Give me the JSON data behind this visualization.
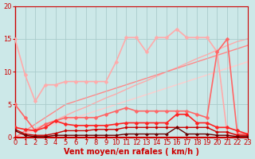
{
  "background_color": "#cce8e8",
  "grid_color": "#aacccc",
  "xlabel": "Vent moyen/en rafales ( km/h )",
  "xlim": [
    0,
    23
  ],
  "ylim": [
    0,
    20
  ],
  "yticks": [
    0,
    5,
    10,
    15,
    20
  ],
  "xticks": [
    0,
    1,
    2,
    3,
    4,
    5,
    6,
    7,
    8,
    9,
    10,
    11,
    12,
    13,
    14,
    15,
    16,
    17,
    18,
    19,
    20,
    21,
    22,
    23
  ],
  "lines": [
    {
      "x": [
        0,
        1,
        2,
        3,
        4,
        5,
        6,
        7,
        8,
        9,
        10,
        11,
        12,
        13,
        14,
        15,
        16,
        17,
        18,
        19,
        20,
        21,
        22,
        23
      ],
      "y": [
        0.0,
        0.5,
        1.0,
        1.5,
        2.0,
        2.5,
        3.0,
        3.5,
        4.0,
        4.5,
        5.0,
        5.5,
        6.0,
        6.5,
        7.0,
        7.5,
        8.0,
        8.5,
        9.0,
        9.5,
        10.0,
        10.5,
        11.0,
        11.5
      ],
      "color": "#ffcccc",
      "lw": 1.0,
      "marker": null,
      "ms": 0,
      "zorder": 1
    },
    {
      "x": [
        0,
        1,
        2,
        3,
        4,
        5,
        6,
        7,
        8,
        9,
        10,
        11,
        12,
        13,
        14,
        15,
        16,
        17,
        18,
        19,
        20,
        21,
        22,
        23
      ],
      "y": [
        0.0,
        0.7,
        1.3,
        2.0,
        2.6,
        3.3,
        4.0,
        4.6,
        5.3,
        6.0,
        6.6,
        7.3,
        8.0,
        8.6,
        9.3,
        10.0,
        10.6,
        11.3,
        12.0,
        12.6,
        13.3,
        14.0,
        14.6,
        15.0
      ],
      "color": "#ffaaaa",
      "lw": 1.0,
      "marker": null,
      "ms": 0,
      "zorder": 1
    },
    {
      "x": [
        0,
        1,
        2,
        3,
        4,
        5,
        6,
        7,
        8,
        9,
        10,
        11,
        12,
        13,
        14,
        15,
        16,
        17,
        18,
        19,
        20,
        21,
        22,
        23
      ],
      "y": [
        0.0,
        1.0,
        2.0,
        3.0,
        4.0,
        5.0,
        5.5,
        6.0,
        6.5,
        7.0,
        7.5,
        8.0,
        8.5,
        9.0,
        9.5,
        10.0,
        10.5,
        11.0,
        11.5,
        12.0,
        12.5,
        13.0,
        13.5,
        14.0
      ],
      "color": "#ff8888",
      "lw": 1.0,
      "marker": null,
      "ms": 0,
      "zorder": 1
    },
    {
      "x": [
        0,
        1,
        2,
        3,
        4,
        5,
        6,
        7,
        8,
        9,
        10,
        11,
        12,
        13,
        14,
        15,
        16,
        17,
        18,
        19,
        20,
        21,
        22,
        23
      ],
      "y": [
        15.0,
        9.5,
        5.5,
        8.0,
        8.0,
        8.5,
        8.5,
        8.5,
        8.5,
        8.5,
        11.5,
        15.2,
        15.2,
        13.0,
        15.2,
        15.2,
        16.5,
        15.2,
        15.2,
        15.2,
        13.0,
        0.5,
        0.5,
        0.5
      ],
      "color": "#ffaaaa",
      "lw": 1.2,
      "marker": "D",
      "ms": 2.5,
      "zorder": 3
    },
    {
      "x": [
        0,
        1,
        2,
        3,
        4,
        5,
        6,
        7,
        8,
        9,
        10,
        11,
        12,
        13,
        14,
        15,
        16,
        17,
        18,
        19,
        20,
        21,
        22,
        23
      ],
      "y": [
        5.0,
        3.0,
        1.0,
        2.0,
        2.5,
        3.0,
        3.0,
        3.0,
        3.0,
        3.5,
        4.0,
        4.5,
        4.0,
        4.0,
        4.0,
        4.0,
        4.0,
        4.0,
        3.5,
        3.0,
        13.0,
        15.0,
        0.5,
        0.5
      ],
      "color": "#ff6666",
      "lw": 1.2,
      "marker": "D",
      "ms": 2.5,
      "zorder": 3
    },
    {
      "x": [
        0,
        1,
        2,
        3,
        4,
        5,
        6,
        7,
        8,
        9,
        10,
        11,
        12,
        13,
        14,
        15,
        16,
        17,
        18,
        19,
        20,
        21,
        22,
        23
      ],
      "y": [
        1.5,
        1.2,
        1.0,
        1.5,
        2.5,
        2.0,
        1.8,
        1.8,
        1.8,
        1.8,
        2.0,
        2.2,
        2.2,
        2.2,
        2.2,
        2.2,
        3.5,
        3.5,
        2.2,
        2.2,
        1.5,
        1.5,
        1.0,
        0.5
      ],
      "color": "#ff2222",
      "lw": 1.2,
      "marker": "D",
      "ms": 2.5,
      "zorder": 4
    },
    {
      "x": [
        0,
        1,
        2,
        3,
        4,
        5,
        6,
        7,
        8,
        9,
        10,
        11,
        12,
        13,
        14,
        15,
        16,
        17,
        18,
        19,
        20,
        21,
        22,
        23
      ],
      "y": [
        1.2,
        0.5,
        0.3,
        0.3,
        0.6,
        1.0,
        1.0,
        1.0,
        1.2,
        1.2,
        1.2,
        1.5,
        1.5,
        1.5,
        1.5,
        1.5,
        1.5,
        1.5,
        1.5,
        1.5,
        0.8,
        0.8,
        0.3,
        0.3
      ],
      "color": "#cc0000",
      "lw": 1.0,
      "marker": "D",
      "ms": 2.0,
      "zorder": 4
    },
    {
      "x": [
        0,
        1,
        2,
        3,
        4,
        5,
        6,
        7,
        8,
        9,
        10,
        11,
        12,
        13,
        14,
        15,
        16,
        17,
        18,
        19,
        20,
        21,
        22,
        23
      ],
      "y": [
        1.0,
        0.3,
        0.1,
        0.1,
        0.3,
        0.3,
        0.3,
        0.3,
        0.3,
        0.3,
        0.3,
        0.5,
        0.5,
        0.5,
        0.5,
        0.5,
        1.5,
        0.5,
        0.5,
        0.5,
        0.3,
        0.3,
        0.1,
        0.1
      ],
      "color": "#660000",
      "lw": 1.0,
      "marker": "D",
      "ms": 2.0,
      "zorder": 5
    },
    {
      "x": [
        0,
        23
      ],
      "y": [
        0.0,
        0.0
      ],
      "color": "#ff0000",
      "lw": 1.5,
      "marker": null,
      "ms": 0,
      "zorder": 2
    }
  ],
  "xlabel_color": "#cc0000",
  "xlabel_fontsize": 7,
  "tick_color": "#cc0000",
  "tick_fontsize": 6,
  "spine_color": "#cc0000"
}
